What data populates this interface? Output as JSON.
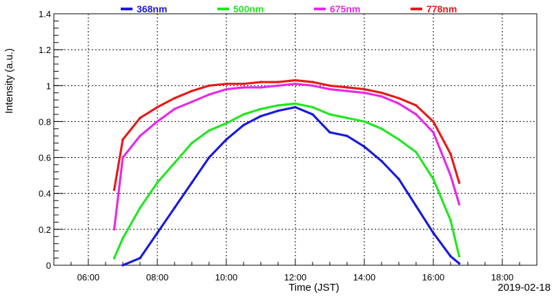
{
  "chart_data": {
    "type": "scatter",
    "xlabel": "Time (JST)",
    "ylabel": "Intensity (a.u.)",
    "date": "2019-02-18",
    "xlim": [
      "05:00",
      "19:00"
    ],
    "ylim": [
      0,
      1.4
    ],
    "x_ticks": [
      "06:00",
      "08:00",
      "10:00",
      "12:00",
      "14:00",
      "16:00",
      "18:00"
    ],
    "y_ticks": [
      "0",
      "0.2",
      "0.4",
      "0.6",
      "0.8",
      "1",
      "1.2",
      "1.4"
    ],
    "grid": true,
    "legend_position": "top",
    "series": [
      {
        "name": "368nm",
        "color": "#1a1adb",
        "points": [
          [
            "07:00",
            0.0
          ],
          [
            "07:30",
            0.04
          ],
          [
            "08:00",
            0.18
          ],
          [
            "08:30",
            0.32
          ],
          [
            "09:00",
            0.46
          ],
          [
            "09:30",
            0.6
          ],
          [
            "10:00",
            0.7
          ],
          [
            "10:30",
            0.78
          ],
          [
            "11:00",
            0.83
          ],
          [
            "11:30",
            0.86
          ],
          [
            "12:00",
            0.88
          ],
          [
            "12:30",
            0.84
          ],
          [
            "13:00",
            0.74
          ],
          [
            "13:30",
            0.72
          ],
          [
            "14:00",
            0.66
          ],
          [
            "14:30",
            0.58
          ],
          [
            "15:00",
            0.48
          ],
          [
            "15:30",
            0.33
          ],
          [
            "16:00",
            0.18
          ],
          [
            "16:30",
            0.05
          ],
          [
            "16:45",
            0.01
          ]
        ]
      },
      {
        "name": "500nm",
        "color": "#22e622",
        "points": [
          [
            "06:45",
            0.04
          ],
          [
            "07:00",
            0.15
          ],
          [
            "07:30",
            0.32
          ],
          [
            "08:00",
            0.46
          ],
          [
            "08:30",
            0.57
          ],
          [
            "09:00",
            0.68
          ],
          [
            "09:30",
            0.75
          ],
          [
            "10:00",
            0.79
          ],
          [
            "10:30",
            0.84
          ],
          [
            "11:00",
            0.87
          ],
          [
            "11:30",
            0.89
          ],
          [
            "12:00",
            0.9
          ],
          [
            "12:30",
            0.88
          ],
          [
            "13:00",
            0.84
          ],
          [
            "13:30",
            0.82
          ],
          [
            "14:00",
            0.8
          ],
          [
            "14:30",
            0.76
          ],
          [
            "15:00",
            0.7
          ],
          [
            "15:30",
            0.63
          ],
          [
            "16:00",
            0.48
          ],
          [
            "16:30",
            0.25
          ],
          [
            "16:45",
            0.05
          ]
        ]
      },
      {
        "name": "675nm",
        "color": "#e62ae6",
        "points": [
          [
            "06:45",
            0.2
          ],
          [
            "07:00",
            0.6
          ],
          [
            "07:30",
            0.72
          ],
          [
            "08:00",
            0.8
          ],
          [
            "08:30",
            0.87
          ],
          [
            "09:00",
            0.91
          ],
          [
            "09:30",
            0.95
          ],
          [
            "10:00",
            0.98
          ],
          [
            "10:30",
            0.99
          ],
          [
            "11:00",
            0.99
          ],
          [
            "11:30",
            1.0
          ],
          [
            "12:00",
            1.01
          ],
          [
            "12:30",
            1.0
          ],
          [
            "13:00",
            0.98
          ],
          [
            "13:30",
            0.97
          ],
          [
            "14:00",
            0.96
          ],
          [
            "14:30",
            0.94
          ],
          [
            "15:00",
            0.9
          ],
          [
            "15:30",
            0.84
          ],
          [
            "16:00",
            0.74
          ],
          [
            "16:30",
            0.5
          ],
          [
            "16:45",
            0.34
          ]
        ]
      },
      {
        "name": "778nm",
        "color": "#e61a1a",
        "points": [
          [
            "06:45",
            0.42
          ],
          [
            "07:00",
            0.7
          ],
          [
            "07:30",
            0.82
          ],
          [
            "08:00",
            0.88
          ],
          [
            "08:30",
            0.93
          ],
          [
            "09:00",
            0.97
          ],
          [
            "09:30",
            1.0
          ],
          [
            "10:00",
            1.01
          ],
          [
            "10:30",
            1.01
          ],
          [
            "11:00",
            1.02
          ],
          [
            "11:30",
            1.02
          ],
          [
            "12:00",
            1.03
          ],
          [
            "12:30",
            1.02
          ],
          [
            "13:00",
            1.0
          ],
          [
            "13:30",
            0.99
          ],
          [
            "14:00",
            0.98
          ],
          [
            "14:30",
            0.96
          ],
          [
            "15:00",
            0.93
          ],
          [
            "15:30",
            0.89
          ],
          [
            "16:00",
            0.8
          ],
          [
            "16:30",
            0.62
          ],
          [
            "16:45",
            0.46
          ]
        ]
      }
    ]
  }
}
